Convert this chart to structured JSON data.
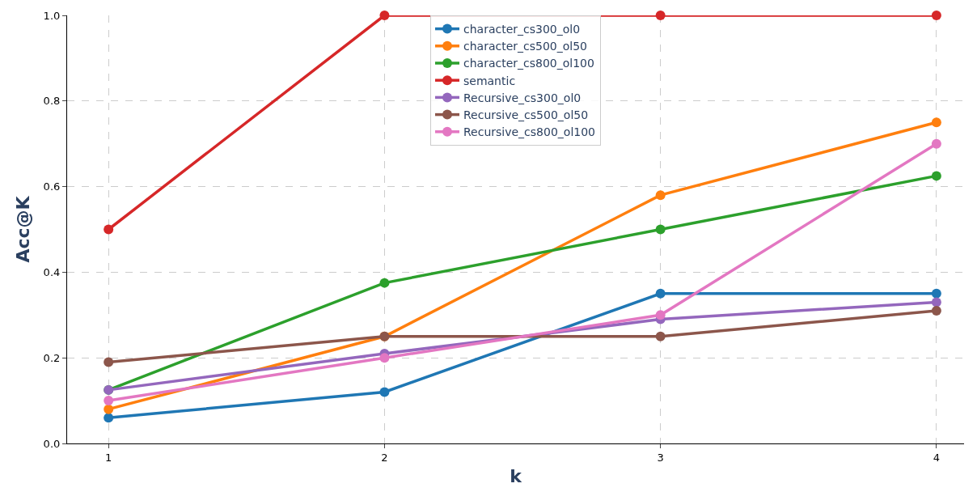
{
  "chart_data": {
    "type": "line",
    "xlabel": "k",
    "ylabel": "Acc@K",
    "x": [
      1,
      2,
      3,
      4
    ],
    "series": [
      {
        "name": "character_cs300_ol0",
        "color": "#1f77b4",
        "values": [
          0.06,
          0.12,
          0.35,
          0.35
        ]
      },
      {
        "name": "character_cs500_ol50",
        "color": "#ff7f0e",
        "values": [
          0.08,
          0.25,
          0.58,
          0.75
        ]
      },
      {
        "name": "character_cs800_ol100",
        "color": "#2ca02c",
        "values": [
          0.125,
          0.375,
          0.5,
          0.625
        ]
      },
      {
        "name": "semantic",
        "color": "#d62728",
        "values": [
          0.5,
          1.0,
          1.0,
          1.0
        ]
      },
      {
        "name": "Recursive_cs300_ol0",
        "color": "#9467bd",
        "values": [
          0.125,
          0.21,
          0.29,
          0.33
        ]
      },
      {
        "name": "Recursive_cs500_ol50",
        "color": "#8c564b",
        "values": [
          0.19,
          0.25,
          0.25,
          0.31
        ]
      },
      {
        "name": "Recursive_cs800_ol100",
        "color": "#e377c2",
        "values": [
          0.1,
          0.2,
          0.3,
          0.7
        ]
      }
    ],
    "xlim": [
      0.85,
      4.1
    ],
    "xticks": [
      1,
      2,
      3,
      4
    ],
    "ylim": [
      0,
      1
    ],
    "yticks": [
      {
        "value": 0,
        "label": "0.0"
      },
      0.2,
      0.4,
      0.6,
      0.8,
      {
        "value": 1,
        "label": "1.0"
      }
    ],
    "grid": true,
    "legend": "top",
    "marker": "circle",
    "line_style": "solid"
  }
}
